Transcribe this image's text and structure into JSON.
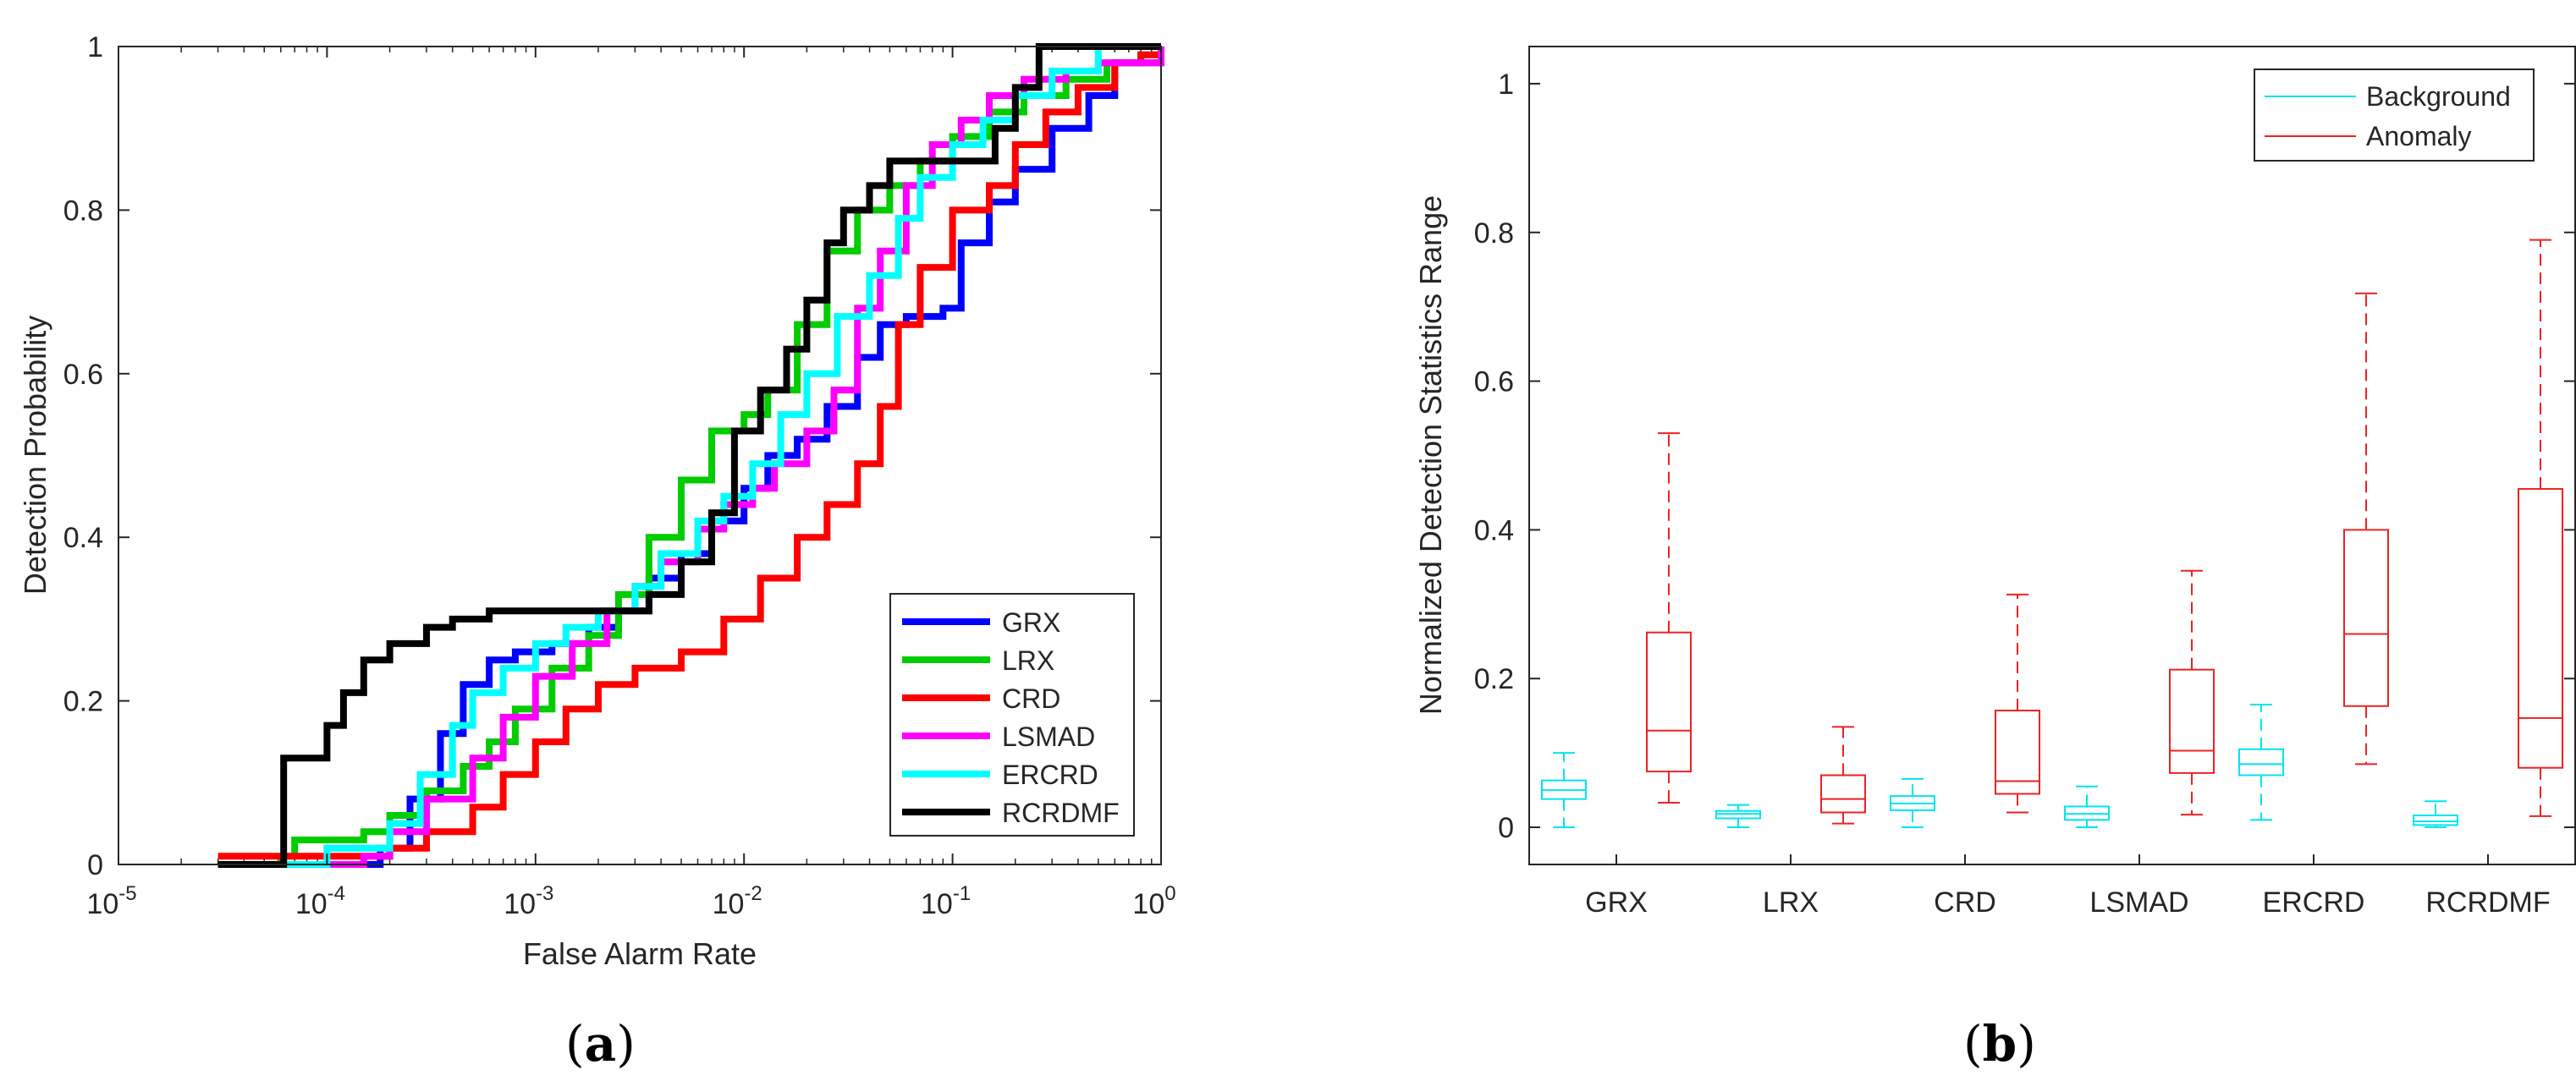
{
  "captions": {
    "a": "a",
    "b": "b"
  },
  "chart_data": [
    {
      "type": "line",
      "xscale": "log",
      "xlabel": "False Alarm Rate",
      "ylabel": "Detection Probability",
      "xlim": [
        1e-05,
        1
      ],
      "ylim": [
        0,
        1
      ],
      "xticks": [
        {
          "base": "10",
          "exp": "-5",
          "value": 1e-05
        },
        {
          "base": "10",
          "exp": "-4",
          "value": 0.0001
        },
        {
          "base": "10",
          "exp": "-3",
          "value": 0.001
        },
        {
          "base": "10",
          "exp": "-2",
          "value": 0.01
        },
        {
          "base": "10",
          "exp": "-1",
          "value": 0.1
        },
        {
          "base": "10",
          "exp": "0",
          "value": 1
        }
      ],
      "yticks": [
        "0",
        "0.2",
        "0.4",
        "0.6",
        "0.8",
        "1"
      ],
      "legend_position": "bottom-right",
      "series": [
        {
          "name": "GRX",
          "color": "#0000ff",
          "points": [
            [
              3e-05,
              0.0
            ],
            [
              0.0001,
              0.0
            ],
            [
              0.00018,
              0.02
            ],
            [
              0.00025,
              0.08
            ],
            [
              0.00035,
              0.16
            ],
            [
              0.00045,
              0.22
            ],
            [
              0.0006,
              0.25
            ],
            [
              0.0008,
              0.26
            ],
            [
              0.0012,
              0.27
            ],
            [
              0.0018,
              0.29
            ],
            [
              0.0025,
              0.31
            ],
            [
              0.0035,
              0.35
            ],
            [
              0.005,
              0.38
            ],
            [
              0.007,
              0.42
            ],
            [
              0.01,
              0.46
            ],
            [
              0.013,
              0.5
            ],
            [
              0.018,
              0.52
            ],
            [
              0.025,
              0.56
            ],
            [
              0.035,
              0.62
            ],
            [
              0.045,
              0.66
            ],
            [
              0.06,
              0.67
            ],
            [
              0.09,
              0.68
            ],
            [
              0.11,
              0.76
            ],
            [
              0.15,
              0.81
            ],
            [
              0.2,
              0.85
            ],
            [
              0.3,
              0.9
            ],
            [
              0.45,
              0.94
            ],
            [
              0.6,
              0.98
            ],
            [
              1.0,
              1.0
            ]
          ]
        },
        {
          "name": "LRX",
          "color": "#00cc00",
          "points": [
            [
              3e-05,
              0.0
            ],
            [
              6e-05,
              0.01
            ],
            [
              7e-05,
              0.03
            ],
            [
              0.00015,
              0.04
            ],
            [
              0.0002,
              0.06
            ],
            [
              0.0003,
              0.09
            ],
            [
              0.00045,
              0.12
            ],
            [
              0.0006,
              0.15
            ],
            [
              0.0008,
              0.19
            ],
            [
              0.0012,
              0.24
            ],
            [
              0.0018,
              0.28
            ],
            [
              0.0025,
              0.33
            ],
            [
              0.0035,
              0.4
            ],
            [
              0.005,
              0.47
            ],
            [
              0.007,
              0.53
            ],
            [
              0.01,
              0.55
            ],
            [
              0.013,
              0.58
            ],
            [
              0.018,
              0.66
            ],
            [
              0.025,
              0.75
            ],
            [
              0.035,
              0.8
            ],
            [
              0.05,
              0.83
            ],
            [
              0.07,
              0.86
            ],
            [
              0.1,
              0.89
            ],
            [
              0.15,
              0.92
            ],
            [
              0.22,
              0.94
            ],
            [
              0.35,
              0.96
            ],
            [
              0.55,
              0.98
            ],
            [
              0.8,
              0.99
            ],
            [
              1.0,
              1.0
            ]
          ]
        },
        {
          "name": "CRD",
          "color": "#ff0000",
          "points": [
            [
              3e-05,
              0.01
            ],
            [
              0.0001,
              0.01
            ],
            [
              0.0002,
              0.02
            ],
            [
              0.0003,
              0.04
            ],
            [
              0.0005,
              0.07
            ],
            [
              0.0007,
              0.11
            ],
            [
              0.001,
              0.15
            ],
            [
              0.0014,
              0.19
            ],
            [
              0.002,
              0.22
            ],
            [
              0.003,
              0.24
            ],
            [
              0.005,
              0.26
            ],
            [
              0.008,
              0.3
            ],
            [
              0.012,
              0.35
            ],
            [
              0.018,
              0.4
            ],
            [
              0.025,
              0.44
            ],
            [
              0.035,
              0.49
            ],
            [
              0.045,
              0.56
            ],
            [
              0.055,
              0.66
            ],
            [
              0.07,
              0.73
            ],
            [
              0.1,
              0.8
            ],
            [
              0.15,
              0.83
            ],
            [
              0.2,
              0.88
            ],
            [
              0.28,
              0.92
            ],
            [
              0.4,
              0.95
            ],
            [
              0.6,
              0.98
            ],
            [
              0.8,
              0.99
            ],
            [
              1.0,
              1.0
            ]
          ]
        },
        {
          "name": "LSMAD",
          "color": "#ff00ff",
          "points": [
            [
              3e-05,
              0.0
            ],
            [
              0.0001,
              0.0
            ],
            [
              0.00015,
              0.01
            ],
            [
              0.0002,
              0.04
            ],
            [
              0.0003,
              0.08
            ],
            [
              0.0005,
              0.13
            ],
            [
              0.0007,
              0.18
            ],
            [
              0.001,
              0.23
            ],
            [
              0.0015,
              0.27
            ],
            [
              0.0022,
              0.31
            ],
            [
              0.003,
              0.34
            ],
            [
              0.004,
              0.37
            ],
            [
              0.006,
              0.41
            ],
            [
              0.008,
              0.44
            ],
            [
              0.011,
              0.46
            ],
            [
              0.014,
              0.49
            ],
            [
              0.02,
              0.53
            ],
            [
              0.027,
              0.58
            ],
            [
              0.035,
              0.68
            ],
            [
              0.045,
              0.75
            ],
            [
              0.06,
              0.83
            ],
            [
              0.08,
              0.88
            ],
            [
              0.11,
              0.91
            ],
            [
              0.15,
              0.94
            ],
            [
              0.22,
              0.96
            ],
            [
              0.35,
              0.97
            ],
            [
              0.5,
              0.98
            ],
            [
              1.0,
              1.0
            ]
          ]
        },
        {
          "name": "ERCRD",
          "color": "#00ffff",
          "points": [
            [
              3e-05,
              0.0
            ],
            [
              0.0001,
              0.02
            ],
            [
              0.0002,
              0.05
            ],
            [
              0.00028,
              0.11
            ],
            [
              0.0004,
              0.17
            ],
            [
              0.0005,
              0.21
            ],
            [
              0.0007,
              0.24
            ],
            [
              0.001,
              0.27
            ],
            [
              0.0014,
              0.29
            ],
            [
              0.002,
              0.31
            ],
            [
              0.003,
              0.34
            ],
            [
              0.004,
              0.38
            ],
            [
              0.006,
              0.42
            ],
            [
              0.008,
              0.45
            ],
            [
              0.011,
              0.49
            ],
            [
              0.015,
              0.55
            ],
            [
              0.02,
              0.6
            ],
            [
              0.028,
              0.67
            ],
            [
              0.04,
              0.72
            ],
            [
              0.055,
              0.79
            ],
            [
              0.07,
              0.84
            ],
            [
              0.1,
              0.88
            ],
            [
              0.14,
              0.91
            ],
            [
              0.2,
              0.94
            ],
            [
              0.3,
              0.97
            ],
            [
              0.5,
              1.0
            ],
            [
              1.0,
              1.0
            ]
          ]
        },
        {
          "name": "RCRDMF",
          "color": "#000000",
          "points": [
            [
              3e-05,
              0.0
            ],
            [
              6e-05,
              0.0
            ],
            [
              6.2e-05,
              0.13
            ],
            [
              0.0001,
              0.17
            ],
            [
              0.00012,
              0.21
            ],
            [
              0.00015,
              0.25
            ],
            [
              0.0002,
              0.27
            ],
            [
              0.0003,
              0.29
            ],
            [
              0.0004,
              0.3
            ],
            [
              0.0006,
              0.31
            ],
            [
              0.001,
              0.31
            ],
            [
              0.0015,
              0.31
            ],
            [
              0.0025,
              0.31
            ],
            [
              0.0035,
              0.33
            ],
            [
              0.005,
              0.37
            ],
            [
              0.007,
              0.43
            ],
            [
              0.009,
              0.53
            ],
            [
              0.012,
              0.58
            ],
            [
              0.016,
              0.63
            ],
            [
              0.02,
              0.69
            ],
            [
              0.025,
              0.76
            ],
            [
              0.03,
              0.8
            ],
            [
              0.04,
              0.83
            ],
            [
              0.05,
              0.86
            ],
            [
              0.08,
              0.86
            ],
            [
              0.12,
              0.86
            ],
            [
              0.16,
              0.9
            ],
            [
              0.2,
              0.95
            ],
            [
              0.26,
              1.0
            ],
            [
              1.0,
              1.0
            ]
          ]
        }
      ]
    },
    {
      "type": "box",
      "ylabel": "Normalized Detection Statistics Range",
      "ylim": [
        -0.05,
        1.05
      ],
      "yticks": [
        "0",
        "0.2",
        "0.4",
        "0.6",
        "0.8",
        "1"
      ],
      "categories": [
        "GRX",
        "LRX",
        "CRD",
        "LSMAD",
        "ERCRD",
        "RCRDMF"
      ],
      "legend_position": "top-right",
      "series": [
        {
          "name": "Background",
          "color": "#00e5ee",
          "boxes": [
            {
              "min": 0.0,
              "q1": 0.038,
              "median": 0.05,
              "q3": 0.063,
              "max": 0.1
            },
            {
              "min": 0.0,
              "q1": 0.012,
              "median": 0.018,
              "q3": 0.022,
              "max": 0.03
            },
            {
              "min": 0.0,
              "q1": 0.023,
              "median": 0.032,
              "q3": 0.042,
              "max": 0.065
            },
            {
              "min": 0.0,
              "q1": 0.01,
              "median": 0.018,
              "q3": 0.028,
              "max": 0.055
            },
            {
              "min": 0.01,
              "q1": 0.07,
              "median": 0.085,
              "q3": 0.105,
              "max": 0.165
            },
            {
              "min": 0.0,
              "q1": 0.003,
              "median": 0.008,
              "q3": 0.016,
              "max": 0.035
            }
          ]
        },
        {
          "name": "Anomaly",
          "color": "#ee2222",
          "boxes": [
            {
              "min": 0.033,
              "q1": 0.075,
              "median": 0.13,
              "q3": 0.262,
              "max": 0.53
            },
            {
              "min": 0.005,
              "q1": 0.02,
              "median": 0.038,
              "q3": 0.07,
              "max": 0.135
            },
            {
              "min": 0.02,
              "q1": 0.045,
              "median": 0.062,
              "q3": 0.157,
              "max": 0.313
            },
            {
              "min": 0.017,
              "q1": 0.073,
              "median": 0.103,
              "q3": 0.212,
              "max": 0.345
            },
            {
              "min": 0.085,
              "q1": 0.163,
              "median": 0.26,
              "q3": 0.4,
              "max": 0.718
            },
            {
              "min": 0.015,
              "q1": 0.08,
              "median": 0.147,
              "q3": 0.455,
              "max": 0.79
            }
          ]
        }
      ]
    }
  ]
}
